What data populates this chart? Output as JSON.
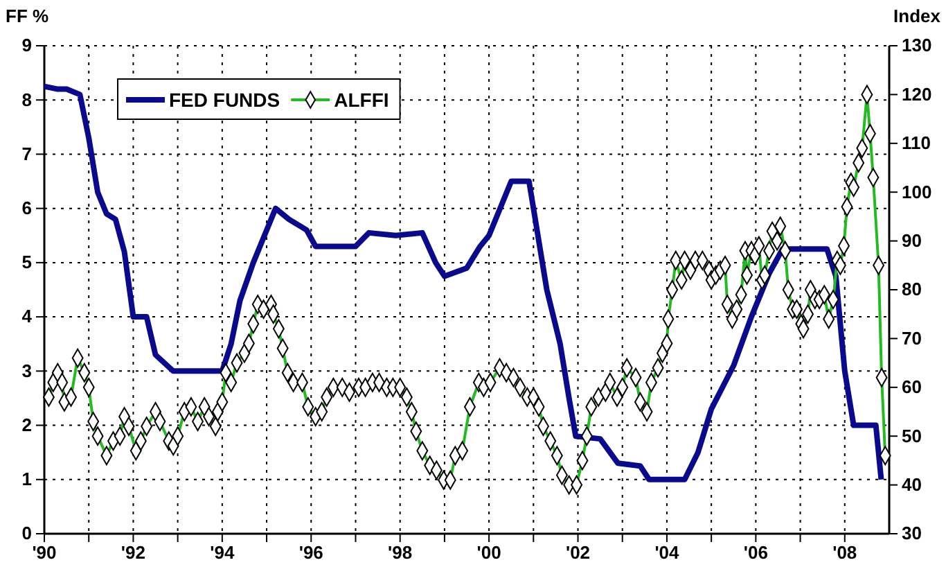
{
  "chart_data": {
    "type": "line",
    "ylabel": "FF %",
    "y2label": "Index",
    "xlim": [
      1990,
      2009
    ],
    "xticks": [
      {
        "value": 1990,
        "label": "'90"
      },
      {
        "value": 1991,
        "label": null
      },
      {
        "value": 1992,
        "label": "'92"
      },
      {
        "value": 1993,
        "label": null
      },
      {
        "value": 1994,
        "label": "'94"
      },
      {
        "value": 1995,
        "label": null
      },
      {
        "value": 1996,
        "label": "'96"
      },
      {
        "value": 1997,
        "label": null
      },
      {
        "value": 1998,
        "label": "'98"
      },
      {
        "value": 1999,
        "label": null
      },
      {
        "value": 2000,
        "label": "'00"
      },
      {
        "value": 2001,
        "label": null
      },
      {
        "value": 2002,
        "label": "'02"
      },
      {
        "value": 2003,
        "label": null
      },
      {
        "value": 2004,
        "label": "'04"
      },
      {
        "value": 2005,
        "label": null
      },
      {
        "value": 2006,
        "label": "'06"
      },
      {
        "value": 2007,
        "label": null
      },
      {
        "value": 2008,
        "label": "'08"
      }
    ],
    "ylim": [
      0,
      9
    ],
    "yticks": [
      0,
      1,
      2,
      3,
      4,
      5,
      6,
      7,
      8,
      9
    ],
    "y2lim": [
      30,
      130
    ],
    "y2ticks": [
      30,
      40,
      50,
      60,
      70,
      80,
      90,
      100,
      110,
      120,
      130
    ],
    "grid": true,
    "legend": "top left",
    "series": [
      {
        "name": "FED FUNDS",
        "color": "#0a0a8c",
        "marker": "none",
        "x": [
          1990.0,
          1990.3,
          1990.5,
          1990.8,
          1991.0,
          1991.2,
          1991.4,
          1991.6,
          1991.8,
          1992.0,
          1992.3,
          1992.5,
          1992.9,
          1993.5,
          1994.0,
          1994.2,
          1994.4,
          1994.7,
          1995.0,
          1995.2,
          1995.5,
          1995.9,
          1996.1,
          1996.5,
          1997.0,
          1997.3,
          1997.9,
          1998.5,
          1998.8,
          1999.0,
          1999.5,
          1999.8,
          2000.0,
          2000.5,
          2000.9,
          2001.0,
          2001.3,
          2001.6,
          2001.8,
          2001.95,
          2002.5,
          2002.9,
          2003.4,
          2003.6,
          2004.4,
          2004.7,
          2005.0,
          2005.5,
          2005.9,
          2006.3,
          2006.6,
          2007.6,
          2007.8,
          2008.0,
          2008.2,
          2008.7,
          2008.82
        ],
        "values": [
          8.25,
          8.2,
          8.2,
          8.1,
          7.3,
          6.3,
          5.9,
          5.8,
          5.2,
          4.0,
          4.0,
          3.3,
          3.0,
          3.0,
          3.0,
          3.5,
          4.3,
          5.0,
          5.6,
          6.0,
          5.8,
          5.6,
          5.3,
          5.3,
          5.3,
          5.55,
          5.5,
          5.55,
          5.0,
          4.75,
          4.9,
          5.3,
          5.5,
          6.5,
          6.5,
          6.0,
          4.5,
          3.5,
          2.5,
          1.8,
          1.75,
          1.3,
          1.25,
          1.0,
          1.0,
          1.5,
          2.3,
          3.1,
          4.0,
          4.8,
          5.25,
          5.25,
          4.75,
          3.0,
          2.0,
          2.0,
          1.0
        ]
      },
      {
        "name": "ALFFI",
        "color": "#22bb22",
        "axis": "y2",
        "marker": "diamond",
        "x": [
          1990.1,
          1990.2,
          1990.3,
          1990.4,
          1990.45,
          1990.6,
          1990.75,
          1990.9,
          1991.0,
          1991.1,
          1991.2,
          1991.4,
          1991.55,
          1991.7,
          1991.8,
          1991.9,
          1992.06,
          1992.17,
          1992.3,
          1992.5,
          1992.6,
          1992.8,
          1992.9,
          1993.0,
          1993.15,
          1993.3,
          1993.45,
          1993.6,
          1993.7,
          1993.85,
          1993.9,
          1994.0,
          1994.08,
          1994.2,
          1994.33,
          1994.5,
          1994.6,
          1994.7,
          1994.8,
          1994.93,
          1995.1,
          1995.15,
          1995.27,
          1995.36,
          1995.47,
          1995.6,
          1995.8,
          1995.93,
          1996.1,
          1996.24,
          1996.35,
          1996.5,
          1996.7,
          1996.86,
          1997.07,
          1997.22,
          1997.38,
          1997.53,
          1997.7,
          1997.84,
          1998.0,
          1998.15,
          1998.26,
          1998.36,
          1998.5,
          1998.67,
          1998.82,
          1998.98,
          1999.13,
          1999.24,
          1999.4,
          1999.57,
          1999.77,
          1999.88,
          2000.03,
          2000.24,
          2000.39,
          2000.55,
          2000.7,
          2000.86,
          2001.0,
          2001.12,
          2001.22,
          2001.38,
          2001.53,
          2001.64,
          2001.8,
          2001.97,
          2002.1,
          2002.2,
          2002.3,
          2002.46,
          2002.62,
          2002.72,
          2002.88,
          2003.0,
          2003.1,
          2003.3,
          2003.4,
          2003.55,
          2003.65,
          2003.8,
          2003.9,
          2004.0,
          2004.03,
          2004.12,
          2004.2,
          2004.33,
          2004.4,
          2004.53,
          2004.64,
          2004.8,
          2004.95,
          2005.0,
          2005.1,
          2005.2,
          2005.31,
          2005.36,
          2005.47,
          2005.57,
          2005.67,
          2005.76,
          2005.8,
          2005.9,
          2005.98,
          2006.07,
          2006.14,
          2006.2,
          2006.3,
          2006.37,
          2006.48,
          2006.55,
          2006.66,
          2006.73,
          2006.83,
          2006.92,
          2007.02,
          2007.07,
          2007.17,
          2007.23,
          2007.33,
          2007.43,
          2007.54,
          2007.64,
          2007.74,
          2007.83,
          2007.9,
          2007.98,
          2008.05,
          2008.14,
          2008.2,
          2008.31,
          2008.39,
          2008.5,
          2008.57,
          2008.64,
          2008.76,
          2008.83,
          2008.91
        ],
        "values": [
          58,
          61,
          63,
          61,
          57,
          58,
          66,
          63,
          60,
          53,
          50,
          46,
          49,
          50,
          54,
          52,
          47,
          49,
          52,
          55,
          53,
          49,
          48,
          50,
          55,
          56,
          53,
          56,
          54,
          52,
          55,
          57,
          63,
          61,
          65,
          67,
          69,
          73,
          77,
          76,
          77,
          75,
          72,
          68,
          63,
          61,
          61,
          56,
          54,
          55,
          58,
          60,
          60,
          59,
          60,
          60,
          61,
          61,
          60,
          60,
          60,
          58,
          55,
          51,
          47,
          44,
          43,
          41,
          41,
          46,
          47,
          56,
          61,
          60,
          61,
          64,
          63,
          62,
          60,
          58,
          58,
          56,
          52,
          49,
          46,
          42,
          40,
          40,
          45,
          50,
          56,
          58,
          59,
          61,
          58,
          60,
          64,
          62,
          57,
          55,
          61,
          64,
          67,
          69,
          74,
          80,
          86,
          82,
          86,
          84,
          86,
          86,
          84,
          82,
          83,
          84,
          85,
          77,
          74,
          76,
          79,
          88,
          83,
          88,
          87,
          89,
          82,
          83,
          88,
          92,
          90,
          93,
          88,
          80,
          76,
          76,
          73,
          72,
          75,
          80,
          78,
          78,
          79,
          74,
          78,
          86,
          85,
          89,
          97,
          102,
          101,
          106,
          109,
          120,
          112,
          103,
          85,
          62,
          46
        ]
      }
    ]
  }
}
